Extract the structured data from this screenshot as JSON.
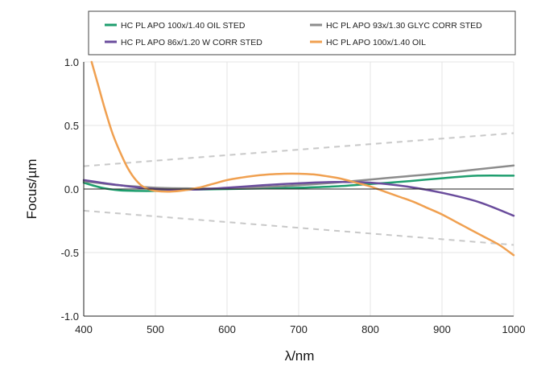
{
  "chart_data": {
    "type": "line",
    "xlabel": "λ/nm",
    "ylabel": "Focus/µm",
    "xlim": [
      400,
      1000
    ],
    "ylim": [
      -1.0,
      1.0
    ],
    "xticks": [
      400,
      500,
      600,
      700,
      800,
      900,
      1000
    ],
    "xtick_labels": [
      "400",
      "500",
      "600",
      "700",
      "800",
      "900",
      "1000"
    ],
    "yticks": [
      1.0,
      0.5,
      0.0,
      -0.5,
      -1.0
    ],
    "ytick_labels": [
      "1.0",
      "0.5",
      "0.0",
      "-0.5",
      "-1.0"
    ],
    "grid": true,
    "legend_position": "top",
    "series": [
      {
        "name": "HC PL APO 100x/1.40 OIL STED",
        "color": "#1e9e6e",
        "x": [
          400,
          425,
          450,
          475,
          500,
          525,
          550,
          600,
          650,
          700,
          750,
          800,
          850,
          900,
          950,
          1000
        ],
        "y": [
          0.05,
          0.01,
          -0.01,
          -0.015,
          -0.015,
          -0.01,
          -0.005,
          0.0,
          0.005,
          0.01,
          0.02,
          0.04,
          0.06,
          0.085,
          0.105,
          0.105
        ]
      },
      {
        "name": "HC PL APO 93x/1.30 GLYC CORR STED",
        "color": "#8c8c8c",
        "x": [
          400,
          450,
          500,
          550,
          600,
          650,
          700,
          750,
          800,
          850,
          900,
          950,
          1000
        ],
        "y": [
          0.06,
          0.03,
          0.01,
          0.005,
          0.005,
          0.015,
          0.03,
          0.05,
          0.075,
          0.1,
          0.125,
          0.155,
          0.185
        ]
      },
      {
        "name": "HC PL APO 86x/1.20 W CORR STED",
        "color": "#6a4c9c",
        "x": [
          400,
          450,
          500,
          550,
          600,
          650,
          700,
          750,
          800,
          850,
          900,
          950,
          1000
        ],
        "y": [
          0.07,
          0.03,
          0.0,
          -0.005,
          0.01,
          0.03,
          0.045,
          0.055,
          0.05,
          0.02,
          -0.03,
          -0.1,
          -0.21
        ]
      },
      {
        "name": "HC PL APO 100x/1.40 OIL",
        "color": "#f0a050",
        "x": [
          411,
          420,
          430,
          440,
          450,
          460,
          470,
          480,
          490,
          500,
          520,
          540,
          560,
          580,
          600,
          620,
          640,
          660,
          680,
          700,
          720,
          740,
          760,
          780,
          800,
          820,
          840,
          860,
          880,
          900,
          920,
          940,
          960,
          980,
          1000
        ],
        "y": [
          1.0,
          0.82,
          0.62,
          0.44,
          0.3,
          0.18,
          0.09,
          0.03,
          0.0,
          -0.015,
          -0.02,
          -0.01,
          0.01,
          0.04,
          0.07,
          0.09,
          0.105,
          0.115,
          0.12,
          0.12,
          0.115,
          0.1,
          0.08,
          0.05,
          0.02,
          -0.02,
          -0.06,
          -0.1,
          -0.15,
          -0.2,
          -0.26,
          -0.32,
          -0.38,
          -0.44,
          -0.52
        ]
      }
    ],
    "bounds": [
      {
        "color": "#c8c8c8",
        "x": [
          400,
          1000
        ],
        "y": [
          0.18,
          0.44
        ]
      },
      {
        "color": "#c8c8c8",
        "x": [
          400,
          1000
        ],
        "y": [
          -0.17,
          -0.44
        ]
      }
    ]
  }
}
